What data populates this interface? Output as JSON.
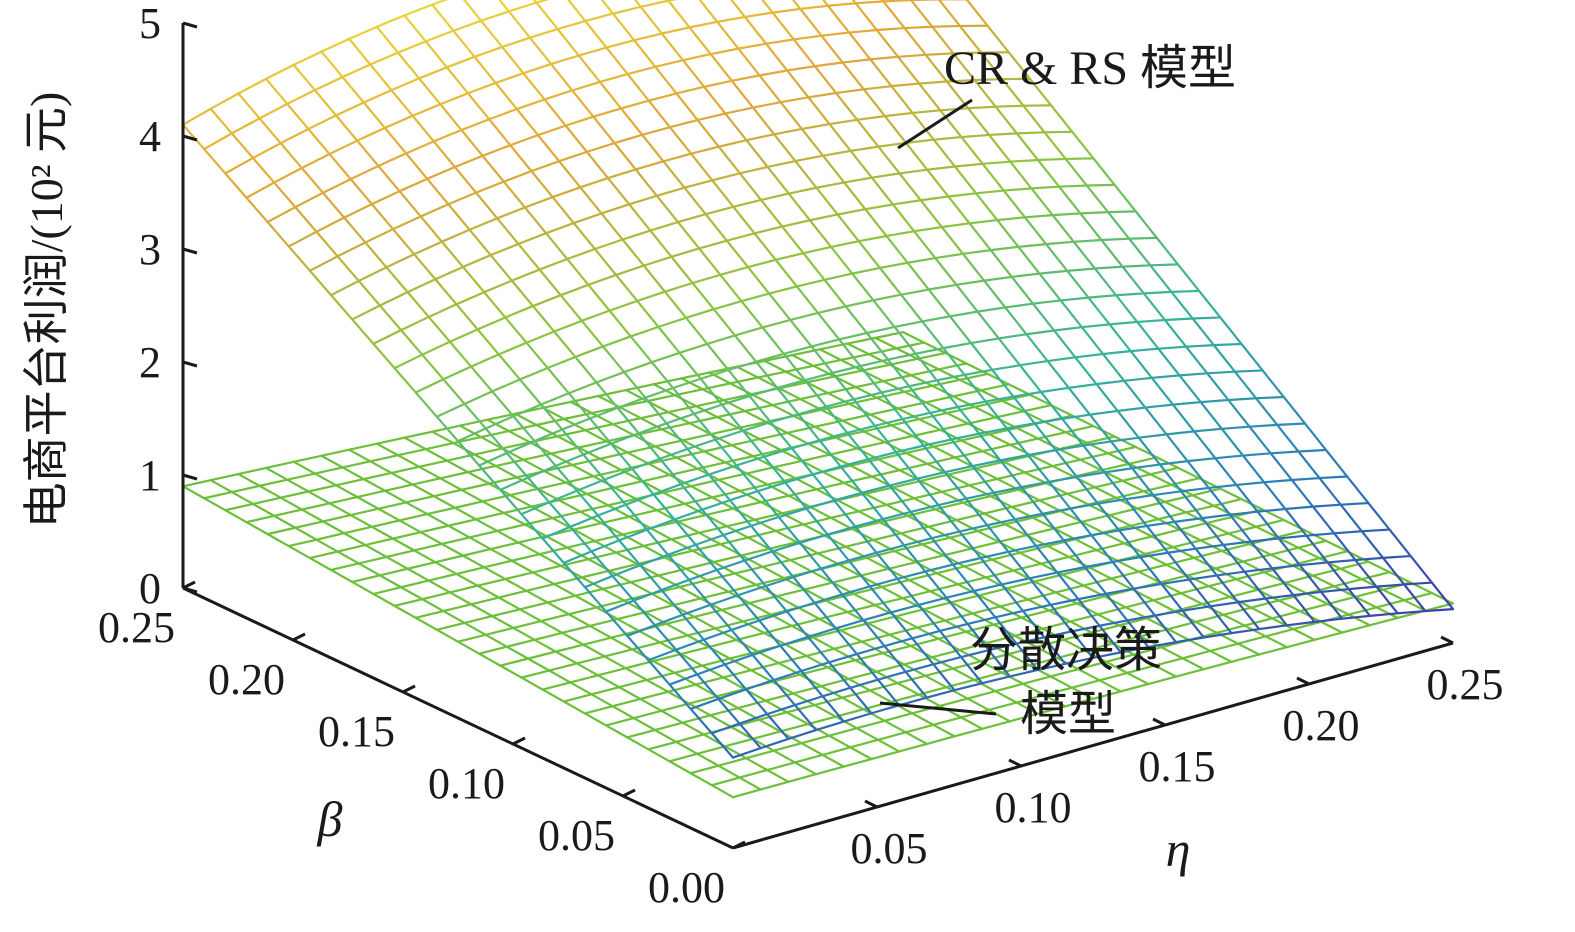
{
  "chart_data": {
    "type": "surface3d",
    "title": "",
    "zlabel": "电商平台利润/(10² 元)",
    "xlabel": "β",
    "ylabel": "η",
    "zlim": [
      0,
      5
    ],
    "xlim": [
      0,
      0.25
    ],
    "ylim": [
      0,
      0.25
    ],
    "z_ticks": [
      "0",
      "1",
      "2",
      "3",
      "4",
      "5"
    ],
    "beta_ticks": [
      "0.25",
      "0.20",
      "0.15",
      "0.10",
      "0.05",
      "0.00"
    ],
    "eta_ticks": [
      "0.05",
      "0.10",
      "0.15",
      "0.20",
      "0.25"
    ],
    "grid": false,
    "colors": {
      "cr_rs_colormap": [
        "#3b3ea8",
        "#2c7fb8",
        "#35b39a",
        "#8cc43f",
        "#e1a63a",
        "#e8d83a"
      ],
      "decentralized": "#6dbf3a",
      "axis": "#1a1a1a"
    },
    "series": [
      {
        "name": "CR & RS 模型",
        "function": "profit(β, η)",
        "corner_values": {
          "beta0_eta0": 0.8,
          "beta0.25_eta0": 4.1,
          "beta0_eta0.25": 0.3,
          "beta0.25_eta0.25": 4.0
        },
        "peak": {
          "beta": 0.25,
          "eta": 0.12,
          "value": 4.55
        }
      },
      {
        "name": "分散决策模型",
        "function": "profit(β, η)",
        "corner_values": {
          "beta0_eta0": 0.45,
          "beta0.25_eta0": 0.9,
          "beta0_eta0.25": 0.35,
          "beta0.25_eta0.25": 0.45
        }
      }
    ],
    "annotations": [
      {
        "text": "CR & RS 模型"
      },
      {
        "text": "分散决策"
      },
      {
        "text": "模型"
      }
    ]
  }
}
